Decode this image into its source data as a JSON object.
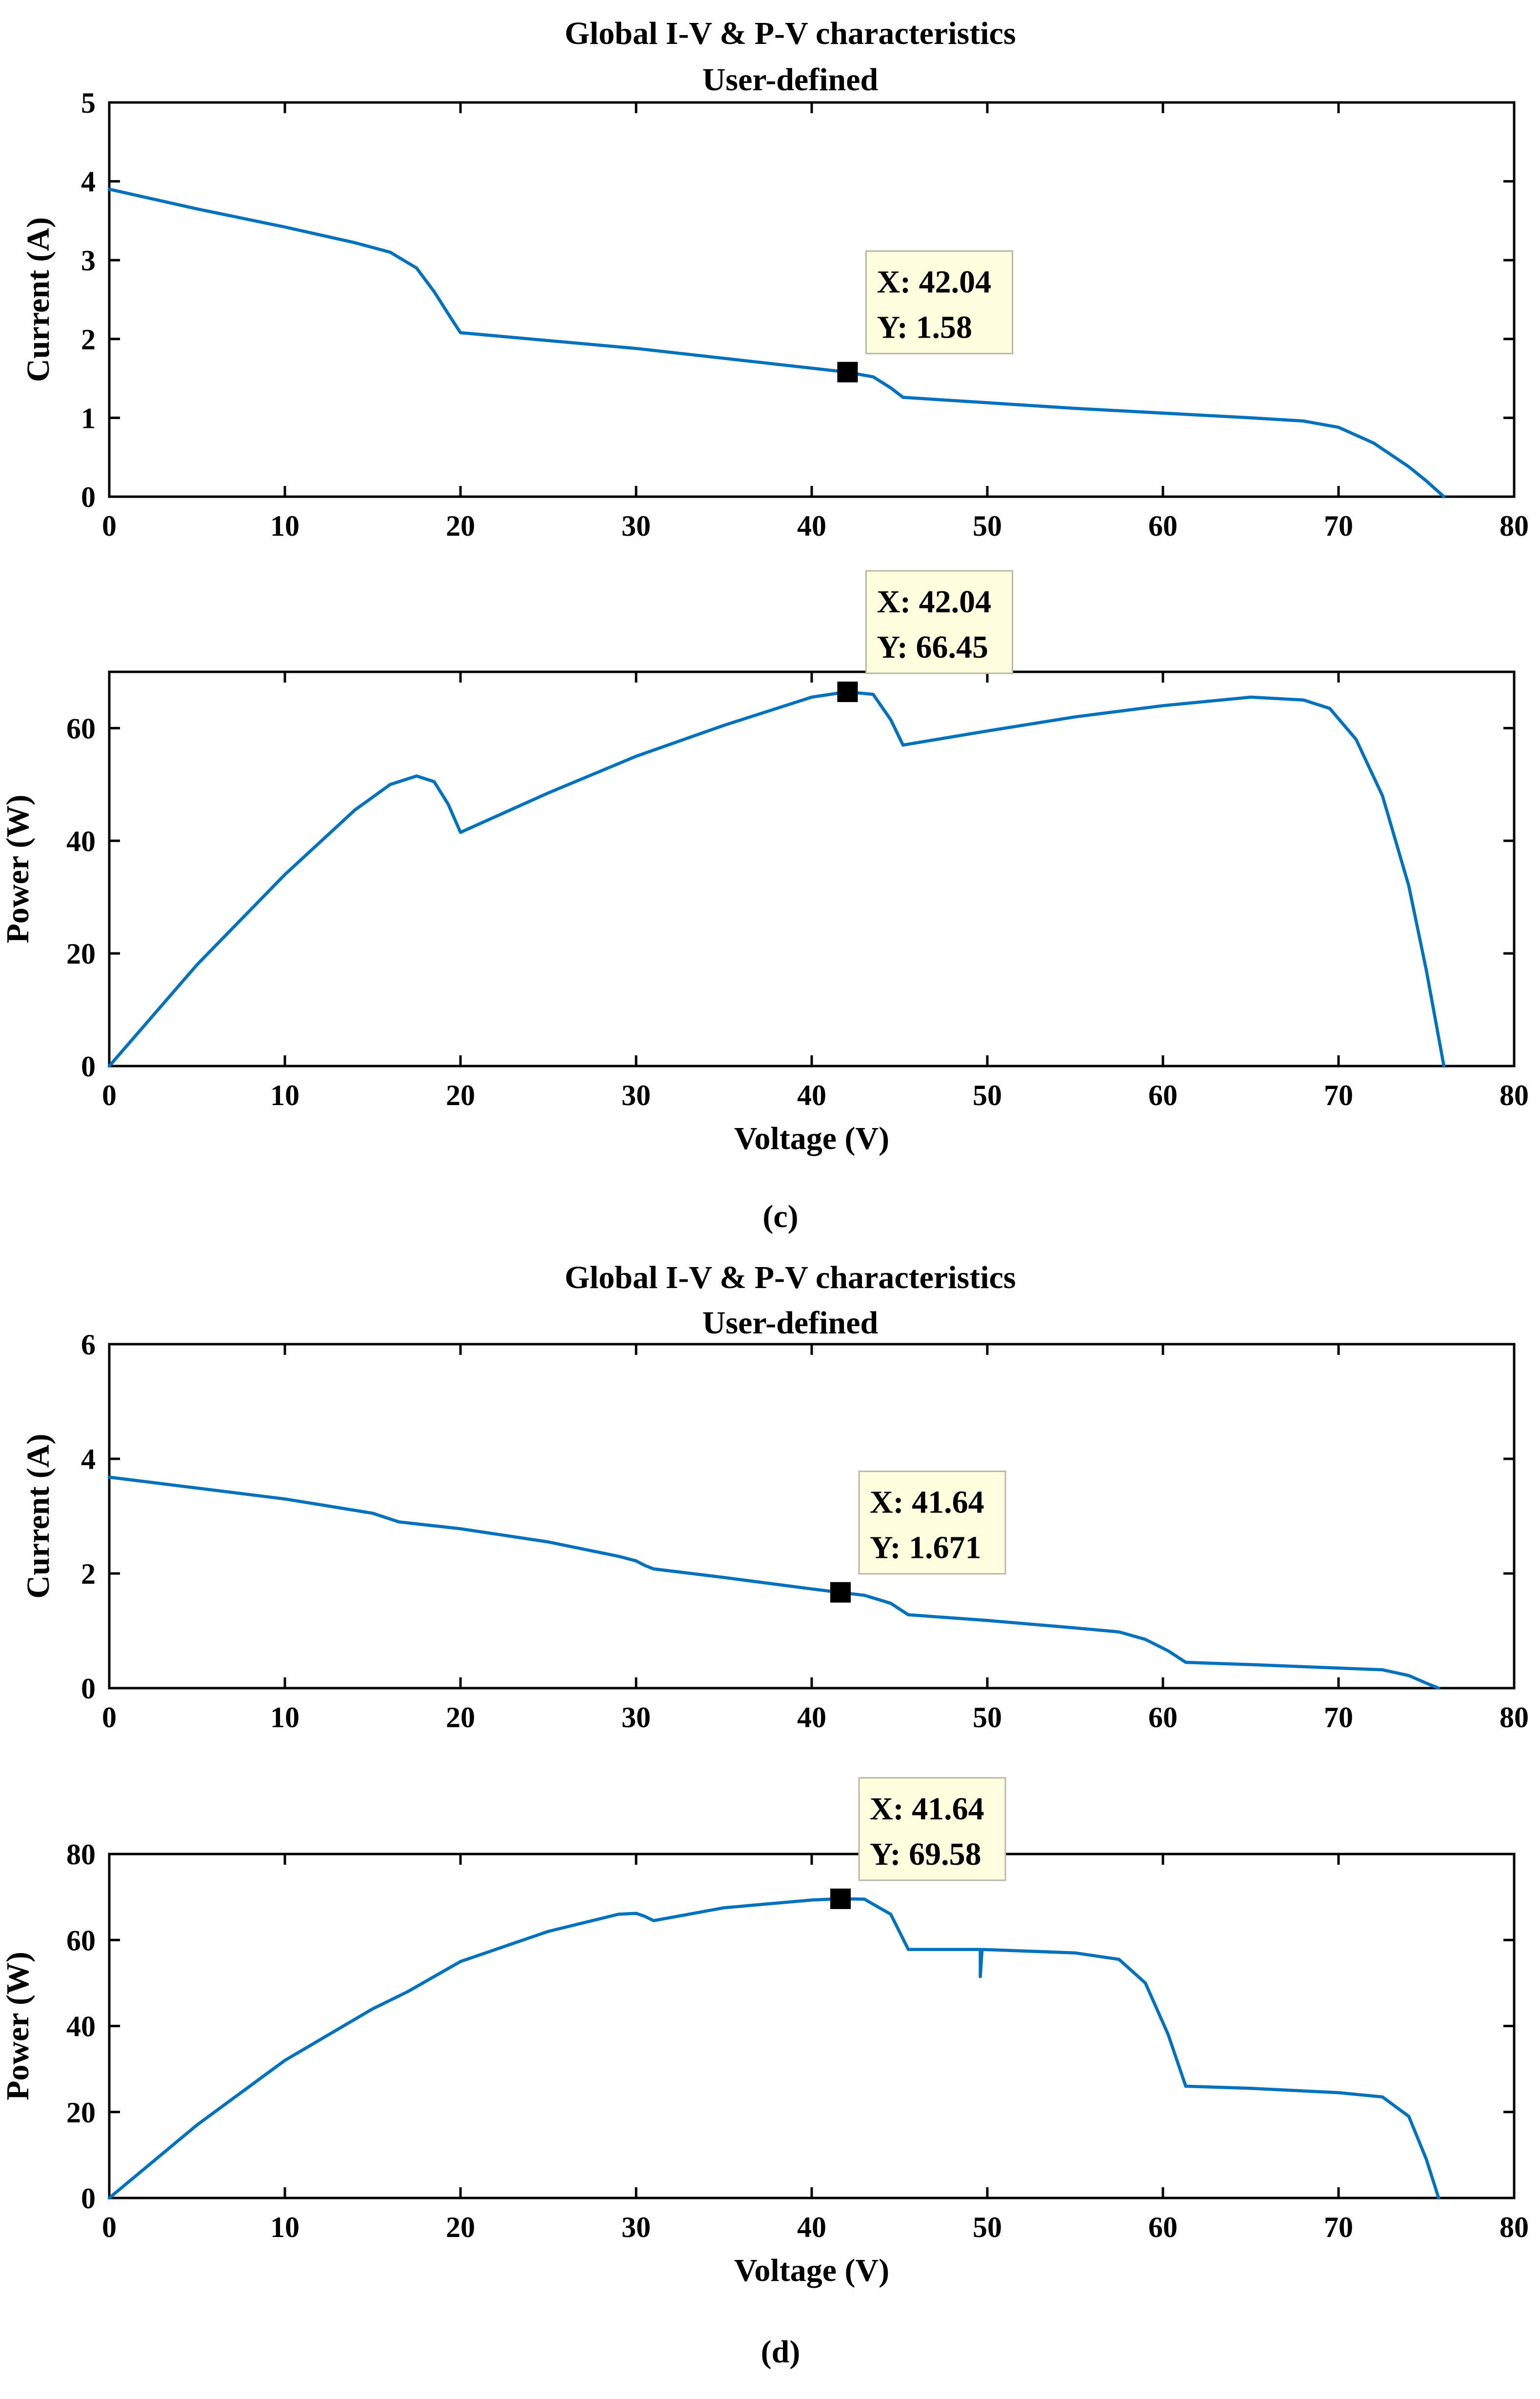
{
  "colors": {
    "series": "#0072BD",
    "tooltip_bg": "#FFFFE0",
    "axis": "#000000"
  },
  "figure": {
    "panel_c_label": "(c)",
    "panel_d_label": "(d)"
  },
  "chart_data": [
    {
      "id": "c-iv",
      "type": "line",
      "title": "Global I-V & P-V characteristics",
      "subtitle": "User-defined",
      "xlabel": "",
      "ylabel": "Current (A)",
      "xlim": [
        0,
        80
      ],
      "ylim": [
        0,
        5
      ],
      "xticks": [
        0,
        10,
        20,
        30,
        40,
        50,
        60,
        70,
        80
      ],
      "yticks": [
        0,
        1,
        2,
        3,
        4,
        5
      ],
      "series": [
        {
          "name": "I-V",
          "points": [
            [
              0,
              3.9
            ],
            [
              5,
              3.65
            ],
            [
              10,
              3.42
            ],
            [
              14,
              3.22
            ],
            [
              16,
              3.1
            ],
            [
              17.5,
              2.9
            ],
            [
              18.5,
              2.6
            ],
            [
              19.5,
              2.25
            ],
            [
              20,
              2.08
            ],
            [
              30,
              1.88
            ],
            [
              40,
              1.63
            ],
            [
              42,
              1.58
            ],
            [
              43.5,
              1.52
            ],
            [
              44.5,
              1.38
            ],
            [
              45.2,
              1.26
            ],
            [
              55,
              1.12
            ],
            [
              65,
              1.0
            ],
            [
              68,
              0.96
            ],
            [
              70,
              0.88
            ],
            [
              72,
              0.68
            ],
            [
              74,
              0.38
            ],
            [
              75,
              0.2
            ],
            [
              76,
              0.0
            ]
          ]
        }
      ],
      "datatip": {
        "x": 42.04,
        "y": 1.58,
        "x_label": "X: 42.04",
        "y_label": "Y: 1.58"
      }
    },
    {
      "id": "c-pv",
      "type": "line",
      "title": "",
      "xlabel": "Voltage (V)",
      "ylabel": "Power (W)",
      "xlim": [
        0,
        80
      ],
      "ylim": [
        0,
        70
      ],
      "xticks": [
        0,
        10,
        20,
        30,
        40,
        50,
        60,
        70,
        80
      ],
      "yticks": [
        0,
        20,
        40,
        60
      ],
      "series": [
        {
          "name": "P-V",
          "points": [
            [
              0,
              0
            ],
            [
              5,
              18
            ],
            [
              10,
              34
            ],
            [
              14,
              45.5
            ],
            [
              16,
              50
            ],
            [
              17.5,
              51.5
            ],
            [
              18.5,
              50.5
            ],
            [
              19.3,
              46.5
            ],
            [
              20,
              41.5
            ],
            [
              25,
              48.5
            ],
            [
              30,
              55
            ],
            [
              35,
              60.5
            ],
            [
              40,
              65.5
            ],
            [
              42,
              66.45
            ],
            [
              43.5,
              66
            ],
            [
              44.5,
              61.5
            ],
            [
              45.2,
              57
            ],
            [
              50,
              59.5
            ],
            [
              55,
              62
            ],
            [
              60,
              64
            ],
            [
              65,
              65.5
            ],
            [
              68,
              65
            ],
            [
              69.5,
              63.5
            ],
            [
              71,
              58
            ],
            [
              72.5,
              48
            ],
            [
              74,
              32
            ],
            [
              75,
              17
            ],
            [
              76,
              0
            ]
          ]
        }
      ],
      "datatip": {
        "x": 42.04,
        "y": 66.45,
        "x_label": "X: 42.04",
        "y_label": "Y: 66.45"
      }
    },
    {
      "id": "d-iv",
      "type": "line",
      "title": "Global I-V & P-V characteristics",
      "subtitle": "User-defined",
      "xlabel": "",
      "ylabel": "Current (A)",
      "xlim": [
        0,
        80
      ],
      "ylim": [
        0,
        6
      ],
      "xticks": [
        0,
        10,
        20,
        30,
        40,
        50,
        60,
        70,
        80
      ],
      "yticks": [
        0,
        2,
        4,
        6
      ],
      "series": [
        {
          "name": "I-V",
          "points": [
            [
              0,
              3.68
            ],
            [
              10,
              3.3
            ],
            [
              15,
              3.05
            ],
            [
              16.5,
              2.9
            ],
            [
              20,
              2.78
            ],
            [
              25,
              2.55
            ],
            [
              29,
              2.3
            ],
            [
              30,
              2.22
            ],
            [
              30.5,
              2.14
            ],
            [
              31,
              2.08
            ],
            [
              35,
              1.93
            ],
            [
              40,
              1.73
            ],
            [
              41.6,
              1.67
            ],
            [
              43,
              1.62
            ],
            [
              44.5,
              1.48
            ],
            [
              45.5,
              1.28
            ],
            [
              50,
              1.18
            ],
            [
              55,
              1.05
            ],
            [
              57.5,
              0.98
            ],
            [
              59,
              0.85
            ],
            [
              60.3,
              0.65
            ],
            [
              61.3,
              0.45
            ],
            [
              65,
              0.41
            ],
            [
              70,
              0.35
            ],
            [
              72.5,
              0.32
            ],
            [
              74,
              0.22
            ],
            [
              75.2,
              0.06
            ],
            [
              75.7,
              0.0
            ]
          ]
        }
      ],
      "datatip": {
        "x": 41.64,
        "y": 1.671,
        "x_label": "X: 41.64",
        "y_label": "Y: 1.671"
      }
    },
    {
      "id": "d-pv",
      "type": "line",
      "title": "",
      "xlabel": "Voltage (V)",
      "ylabel": "Power (W)",
      "xlim": [
        0,
        80
      ],
      "ylim": [
        0,
        80
      ],
      "xticks": [
        0,
        10,
        20,
        30,
        40,
        50,
        60,
        70,
        80
      ],
      "yticks": [
        0,
        20,
        40,
        60,
        80
      ],
      "series": [
        {
          "name": "P-V",
          "points": [
            [
              0,
              0
            ],
            [
              5,
              17
            ],
            [
              10,
              32
            ],
            [
              15,
              44
            ],
            [
              17,
              48
            ],
            [
              20,
              55
            ],
            [
              25,
              62
            ],
            [
              29,
              66
            ],
            [
              30,
              66.2
            ],
            [
              30.5,
              65.5
            ],
            [
              31,
              64.5
            ],
            [
              35,
              67.5
            ],
            [
              40,
              69.3
            ],
            [
              41.6,
              69.58
            ],
            [
              43,
              69.5
            ],
            [
              44.5,
              66
            ],
            [
              45.5,
              57.8
            ],
            [
              49.6,
              57.8
            ],
            [
              49.6,
              51.5
            ],
            [
              49.7,
              57.8
            ],
            [
              55,
              57
            ],
            [
              57.5,
              55.5
            ],
            [
              59,
              50
            ],
            [
              60.3,
              38
            ],
            [
              61.3,
              26
            ],
            [
              65,
              25.5
            ],
            [
              70,
              24.5
            ],
            [
              72.5,
              23.5
            ],
            [
              74,
              19
            ],
            [
              75,
              9
            ],
            [
              75.7,
              0
            ]
          ]
        }
      ],
      "datatip": {
        "x": 41.64,
        "y": 69.58,
        "x_label": "X: 41.64",
        "y_label": "Y: 69.58"
      }
    }
  ]
}
